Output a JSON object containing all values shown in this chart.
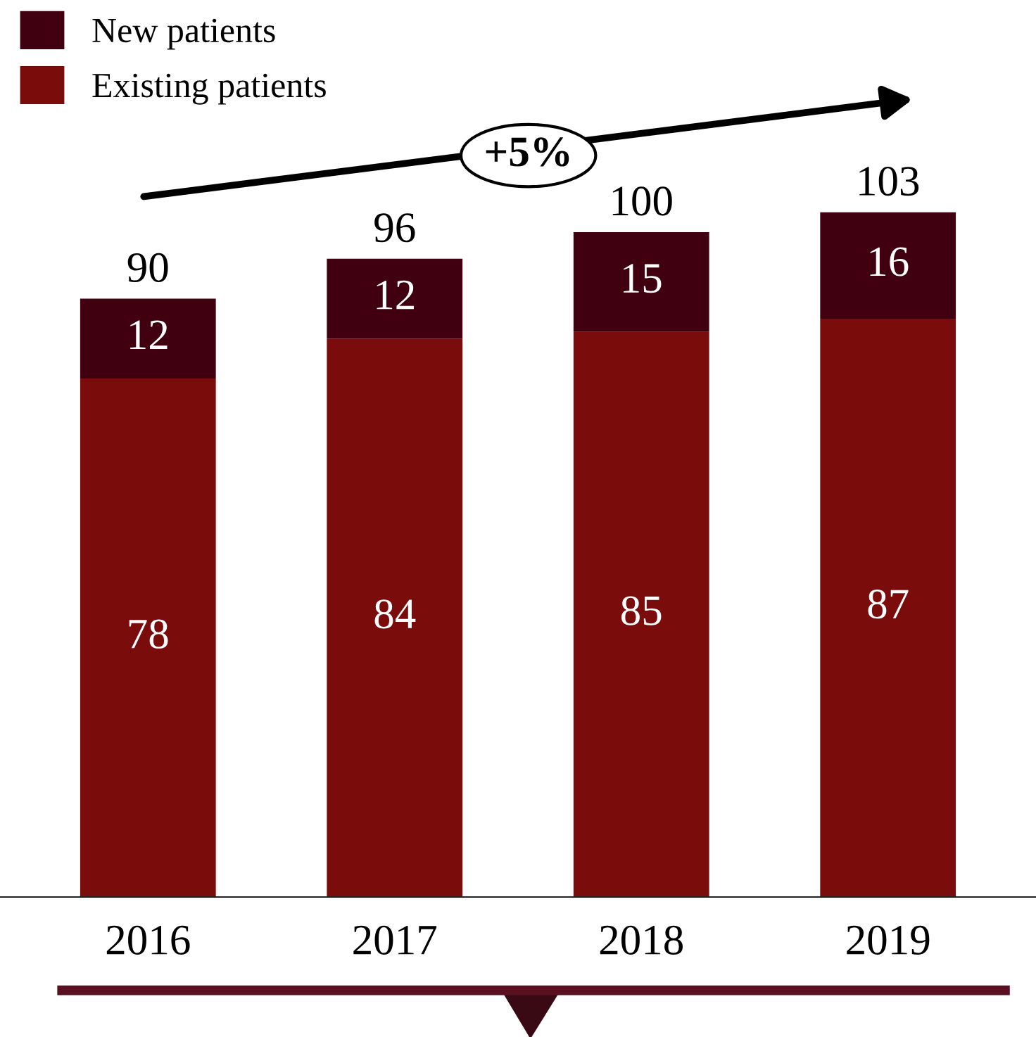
{
  "chart_data": {
    "type": "bar",
    "stacked": true,
    "categories": [
      "2016",
      "2017",
      "2018",
      "2019"
    ],
    "series": [
      {
        "name": "Existing patients",
        "color": "#7a0c0c",
        "values": [
          78,
          84,
          85,
          87
        ]
      },
      {
        "name": "New patients",
        "color": "#40000f",
        "values": [
          12,
          12,
          15,
          16
        ]
      }
    ],
    "totals": [
      "90",
      "96",
      "100",
      "103"
    ],
    "data_labels": true,
    "grid": false,
    "legend": "top left",
    "annotations": [
      {
        "text": "+5%"
      }
    ]
  }
}
